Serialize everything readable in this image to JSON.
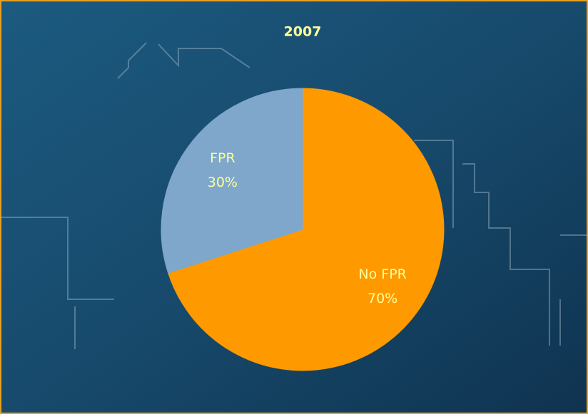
{
  "chart_data": {
    "type": "pie",
    "title": "2007",
    "categories": [
      "No FPR",
      "FPR"
    ],
    "values": [
      70,
      30
    ],
    "value_labels": [
      "70%",
      "30%"
    ],
    "colors": [
      "#ff9900",
      "#7ea7cb"
    ],
    "start_angle": 0,
    "direction": "clockwise"
  }
}
